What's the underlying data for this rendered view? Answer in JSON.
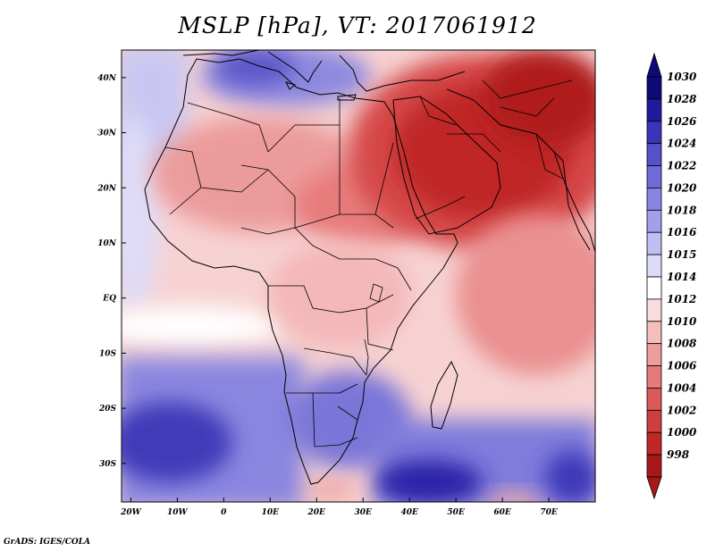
{
  "title": "MSLP [hPa], VT: 2017061912",
  "credit": "GrADS: IGES/COLA",
  "map": {
    "lon_range": [
      -22,
      80
    ],
    "lat_range": [
      -37,
      45
    ],
    "lon_ticks": [
      {
        "lon": -20,
        "label": "20W"
      },
      {
        "lon": -10,
        "label": "10W"
      },
      {
        "lon": 0,
        "label": "0"
      },
      {
        "lon": 10,
        "label": "10E"
      },
      {
        "lon": 20,
        "label": "20E"
      },
      {
        "lon": 30,
        "label": "30E"
      },
      {
        "lon": 40,
        "label": "40E"
      },
      {
        "lon": 50,
        "label": "50E"
      },
      {
        "lon": 60,
        "label": "60E"
      },
      {
        "lon": 70,
        "label": "70E"
      }
    ],
    "lat_ticks": [
      {
        "lat": 40,
        "label": "40N"
      },
      {
        "lat": 30,
        "label": "30N"
      },
      {
        "lat": 20,
        "label": "20N"
      },
      {
        "lat": 10,
        "label": "10N"
      },
      {
        "lat": 0,
        "label": "EQ"
      },
      {
        "lat": -10,
        "label": "10S"
      },
      {
        "lat": -20,
        "label": "20S"
      },
      {
        "lat": -30,
        "label": "30S"
      }
    ]
  },
  "colorbar": {
    "levels": [
      "1030",
      "1028",
      "1026",
      "1024",
      "1022",
      "1020",
      "1018",
      "1016",
      "1015",
      "1014",
      "1012",
      "1010",
      "1008",
      "1006",
      "1004",
      "1002",
      "1000",
      "998"
    ],
    "colors": [
      "#0e0b78",
      "#201aa0",
      "#3a34b8",
      "#5550cc",
      "#6f6bd8",
      "#8884e2",
      "#a3a0eb",
      "#c0bef3",
      "#dcdcfa",
      "#ffffff",
      "#fbdcdc",
      "#f6bdbd",
      "#ee9c9c",
      "#e47b7b",
      "#da5a5a",
      "#cf3e3e",
      "#c02828",
      "#a81818"
    ]
  }
}
